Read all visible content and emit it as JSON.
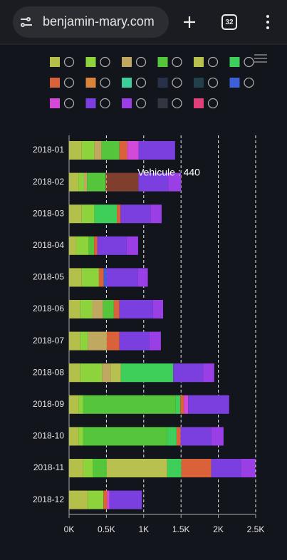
{
  "browser": {
    "url": "benjamin-mary.com",
    "tabs": "32"
  },
  "chart_data": {
    "type": "bar",
    "orientation": "horizontal",
    "stacked": true,
    "categories": [
      "2018-01",
      "2018-02",
      "2018-03",
      "2018-04",
      "2018-05",
      "2018-06",
      "2018-07",
      "2018-08",
      "2018-09",
      "2018-10",
      "2018-11",
      "2018-12"
    ],
    "series": [
      {
        "color": "#b5c04a",
        "values": [
          170,
          125,
          170,
          95,
          170,
          150,
          150,
          150,
          125,
          125,
          190,
          250
        ]
      },
      {
        "color": "#8dd33c",
        "values": [
          170,
          75,
          170,
          170,
          230,
          160,
          105,
          290,
          65,
          65,
          125,
          210
        ]
      },
      {
        "color": "#c0a860",
        "values": [
          95,
          40,
          0,
          0,
          0,
          145,
          250,
          115,
          0,
          0,
          0,
          0
        ]
      },
      {
        "color": "#55c63c",
        "values": [
          240,
          250,
          0,
          70,
          0,
          145,
          0,
          0,
          1240,
          1125,
          190,
          0
        ]
      },
      {
        "color": "#b8c050",
        "values": [
          0,
          0,
          0,
          0,
          0,
          0,
          0,
          140,
          0,
          0,
          810,
          0
        ]
      },
      {
        "color": "#3dcf5a",
        "values": [
          0,
          0,
          300,
          0,
          0,
          0,
          0,
          700,
          60,
          125,
          190,
          0
        ]
      },
      {
        "name": "Vehicule",
        "color": "#d9623b",
        "values": [
          105,
          440,
          50,
          45,
          65,
          75,
          170,
          0,
          50,
          55,
          400,
          50
        ]
      },
      {
        "color": "#d8853a",
        "values": [
          0,
          0,
          0,
          0,
          0,
          0,
          0,
          0,
          0,
          0,
          0,
          0
        ]
      },
      {
        "color": "#3dcf9a",
        "values": [
          0,
          0,
          0,
          0,
          0,
          0,
          0,
          0,
          0,
          0,
          0,
          0
        ]
      },
      {
        "color": "#27324a",
        "values": [
          0,
          0,
          0,
          0,
          0,
          0,
          0,
          0,
          0,
          0,
          0,
          0
        ]
      },
      {
        "color": "#23404a",
        "values": [
          0,
          0,
          0,
          0,
          0,
          0,
          0,
          0,
          0,
          0,
          0,
          0
        ]
      },
      {
        "color": "#3d5fd8",
        "values": [
          0,
          0,
          0,
          0,
          40,
          0,
          0,
          0,
          0,
          0,
          0,
          0
        ]
      },
      {
        "color": "#d44ad8",
        "values": [
          150,
          0,
          0,
          0,
          0,
          0,
          0,
          0,
          55,
          0,
          0,
          30
        ]
      },
      {
        "color": "#7b3fe0",
        "values": [
          490,
          400,
          400,
          390,
          420,
          450,
          400,
          400,
          550,
          410,
          400,
          435
        ]
      },
      {
        "color": "#9a3ee6",
        "values": [
          0,
          170,
          150,
          155,
          130,
          135,
          155,
          150,
          0,
          165,
          190,
          0
        ]
      },
      {
        "color": "#333540",
        "values": [
          0,
          0,
          0,
          0,
          0,
          0,
          0,
          0,
          0,
          0,
          0,
          0
        ]
      },
      {
        "color": "#e0407a",
        "values": [
          0,
          0,
          0,
          0,
          0,
          0,
          0,
          0,
          0,
          0,
          0,
          0
        ]
      }
    ],
    "xlim": [
      0,
      2500
    ],
    "xticks": [
      {
        "value": 0,
        "label": "0K"
      },
      {
        "value": 500,
        "label": "0.5K"
      },
      {
        "value": 1000,
        "label": "1K"
      },
      {
        "value": 1500,
        "label": "1.5K"
      },
      {
        "value": 2000,
        "label": "2K"
      },
      {
        "value": 2500,
        "label": "2.5K"
      }
    ],
    "grid": true,
    "tooltip": {
      "series": 6,
      "index": 1,
      "separator": " : "
    }
  }
}
